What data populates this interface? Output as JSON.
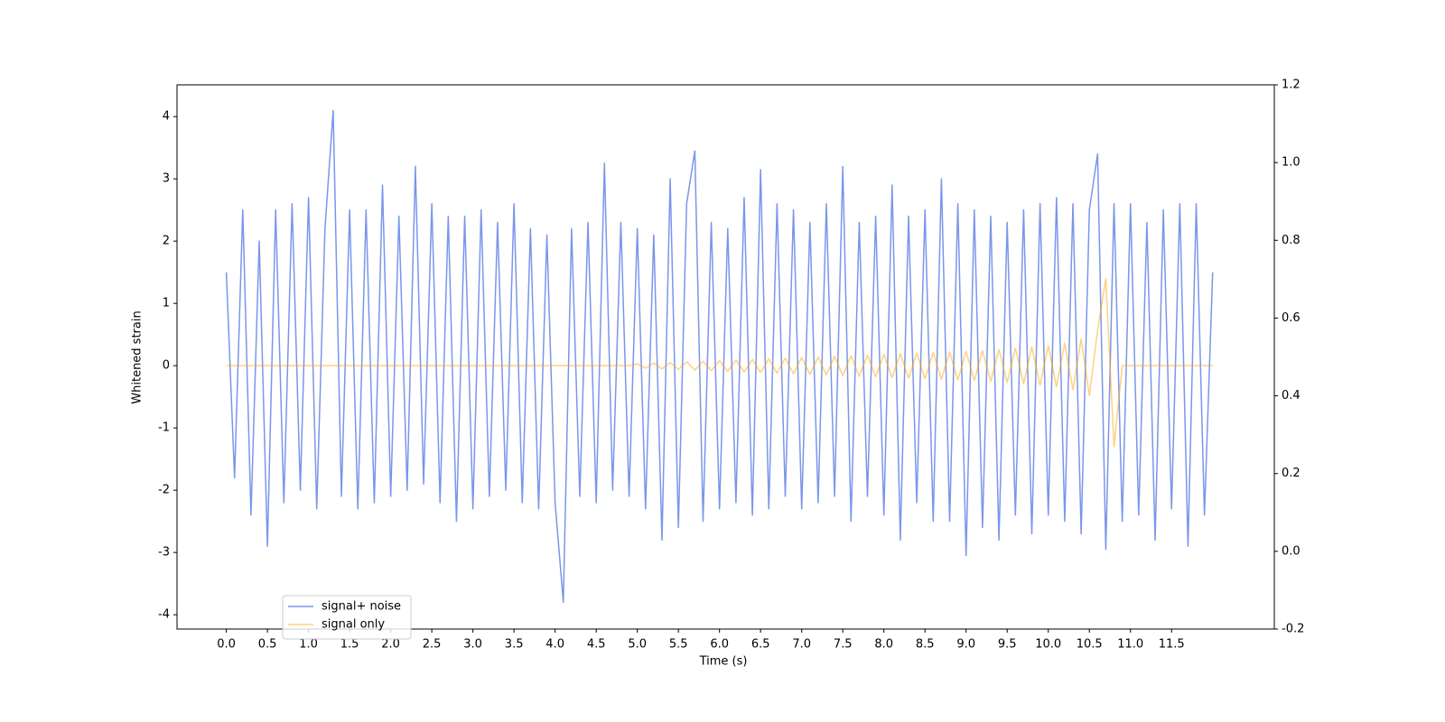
{
  "chart_data": {
    "type": "line",
    "xlabel": "Time (s)",
    "ylabel": "Whitened strain",
    "x": [
      0.0,
      0.1,
      0.2,
      0.3,
      0.4,
      0.5,
      0.6,
      0.7,
      0.8,
      0.9,
      1.0,
      1.1,
      1.2,
      1.3,
      1.4,
      1.5,
      1.6,
      1.7,
      1.8,
      1.9,
      2.0,
      2.1,
      2.2,
      2.3,
      2.4,
      2.5,
      2.6,
      2.7,
      2.8,
      2.9,
      3.0,
      3.1,
      3.2,
      3.3,
      3.4,
      3.5,
      3.6,
      3.7,
      3.8,
      3.9,
      4.0,
      4.1,
      4.2,
      4.3,
      4.4,
      4.5,
      4.6,
      4.7,
      4.8,
      4.9,
      5.0,
      5.1,
      5.2,
      5.3,
      5.4,
      5.5,
      5.6,
      5.7,
      5.8,
      5.9,
      6.0,
      6.1,
      6.2,
      6.3,
      6.4,
      6.5,
      6.6,
      6.7,
      6.8,
      6.9,
      7.0,
      7.1,
      7.2,
      7.3,
      7.4,
      7.5,
      7.6,
      7.7,
      7.8,
      7.9,
      8.0,
      8.1,
      8.2,
      8.3,
      8.4,
      8.5,
      8.6,
      8.7,
      8.8,
      8.9,
      9.0,
      9.1,
      9.2,
      9.3,
      9.4,
      9.5,
      9.6,
      9.7,
      9.8,
      9.9,
      10.0,
      10.1,
      10.2,
      10.3,
      10.4,
      10.5,
      10.6,
      10.7,
      10.8,
      10.9,
      11.0,
      11.1,
      11.2,
      11.3,
      11.4,
      11.5,
      11.6,
      11.7,
      11.8,
      11.9,
      12.0
    ],
    "series": [
      {
        "name": "signal+ noise",
        "color": "#4169e1",
        "opacity": 0.7,
        "values": [
          1.5,
          -1.8,
          2.5,
          -2.4,
          2.0,
          -2.9,
          2.5,
          -2.2,
          2.6,
          -2.0,
          2.7,
          -2.3,
          2.2,
          4.1,
          -2.1,
          2.5,
          -2.3,
          2.5,
          -2.2,
          2.9,
          -2.1,
          2.4,
          -2.0,
          3.2,
          -1.9,
          2.6,
          -2.2,
          2.4,
          -2.5,
          2.4,
          -2.3,
          2.5,
          -2.1,
          2.3,
          -2.0,
          2.6,
          -2.2,
          2.2,
          -2.3,
          2.1,
          -2.2,
          -3.8,
          2.2,
          -2.1,
          2.3,
          -2.2,
          3.25,
          -2.0,
          2.3,
          -2.1,
          2.2,
          -2.3,
          2.1,
          -2.8,
          3.0,
          -2.6,
          2.6,
          3.45,
          -2.5,
          2.3,
          -2.3,
          2.2,
          -2.2,
          2.7,
          -2.4,
          3.15,
          -2.3,
          2.6,
          -2.1,
          2.5,
          -2.3,
          2.3,
          -2.2,
          2.6,
          -2.1,
          3.2,
          -2.5,
          2.3,
          -2.1,
          2.4,
          -2.4,
          2.9,
          -2.8,
          2.4,
          -2.2,
          2.5,
          -2.5,
          3.0,
          -2.5,
          2.6,
          -3.05,
          2.5,
          -2.6,
          2.4,
          -2.8,
          2.3,
          -2.4,
          2.5,
          -2.7,
          2.6,
          -2.4,
          2.7,
          -2.5,
          2.6,
          -2.7,
          2.5,
          3.4,
          -2.95,
          2.6,
          -2.5,
          2.6,
          -2.4,
          2.3,
          -2.8,
          2.5,
          -2.3,
          2.6,
          -2.9,
          2.6,
          -2.4,
          1.5
        ]
      },
      {
        "name": "signal only",
        "color": "#ffa500",
        "opacity": 0.5,
        "values": [
          0,
          0,
          0,
          0,
          0,
          0,
          0,
          0,
          0,
          0,
          0,
          0,
          0,
          0,
          0,
          0,
          0,
          0,
          0,
          0,
          0,
          0,
          0,
          0,
          0,
          0,
          0,
          0,
          0,
          0,
          0,
          0,
          0,
          0,
          0,
          0,
          0,
          0,
          0,
          0,
          0,
          0,
          0,
          0,
          0,
          0,
          0,
          0,
          0,
          0,
          0.03,
          -0.04,
          0.04,
          -0.05,
          0.05,
          -0.06,
          0.06,
          -0.07,
          0.07,
          -0.08,
          0.08,
          -0.09,
          0.09,
          -0.1,
          0.1,
          -0.11,
          0.11,
          -0.12,
          0.12,
          -0.13,
          0.13,
          -0.14,
          0.14,
          -0.15,
          0.15,
          -0.16,
          0.16,
          -0.17,
          0.17,
          -0.18,
          0.18,
          -0.19,
          0.19,
          -0.2,
          0.2,
          -0.21,
          0.21,
          -0.22,
          0.22,
          -0.23,
          0.23,
          -0.24,
          0.24,
          -0.25,
          0.26,
          -0.27,
          0.28,
          -0.29,
          0.3,
          -0.31,
          0.32,
          -0.34,
          0.36,
          -0.39,
          0.43,
          -0.48,
          0.57,
          1.4,
          -1.3,
          0,
          0,
          0,
          0,
          0,
          0,
          0,
          0,
          0,
          0,
          0,
          0
        ]
      }
    ],
    "xlim": [
      -0.6,
      12.75
    ],
    "xticks": [
      {
        "value": 0,
        "label": "0.0"
      },
      {
        "value": 0.5,
        "label": "0.5"
      },
      {
        "value": 1,
        "label": "1.0"
      },
      {
        "value": 1.5,
        "label": "1.5"
      },
      {
        "value": 2,
        "label": "2.0"
      },
      {
        "value": 2.5,
        "label": "2.5"
      },
      {
        "value": 3,
        "label": "3.0"
      },
      {
        "value": 3.5,
        "label": "3.5"
      },
      {
        "value": 4,
        "label": "4.0"
      },
      {
        "value": 4.5,
        "label": "4.5"
      },
      {
        "value": 5,
        "label": "5.0"
      },
      {
        "value": 5.5,
        "label": "5.5"
      },
      {
        "value": 6,
        "label": "6.0"
      },
      {
        "value": 6.5,
        "label": "6.5"
      },
      {
        "value": 7,
        "label": "7.0"
      },
      {
        "value": 7.5,
        "label": "7.5"
      },
      {
        "value": 8,
        "label": "8.0"
      },
      {
        "value": 8.5,
        "label": "8.5"
      },
      {
        "value": 9,
        "label": "9.0"
      },
      {
        "value": 9.5,
        "label": "9.5"
      },
      {
        "value": 10,
        "label": "10.0"
      },
      {
        "value": 10.5,
        "label": "10.5"
      },
      {
        "value": 11,
        "label": "11.0"
      },
      {
        "value": 11.5,
        "label": "11.5"
      }
    ],
    "ylim": [
      -4.23,
      4.51
    ],
    "yticks": [
      -4,
      -3,
      -2,
      -1,
      0,
      1,
      2,
      3,
      4
    ],
    "y2lim": [
      -0.2,
      1.2
    ],
    "y2ticks": [
      -0.2,
      {
        "value": 0,
        "label": "0.0"
      },
      0.2,
      0.4,
      0.6,
      0.8,
      {
        "value": 1,
        "label": "1.0"
      },
      1.2
    ],
    "legend": "lower left"
  }
}
